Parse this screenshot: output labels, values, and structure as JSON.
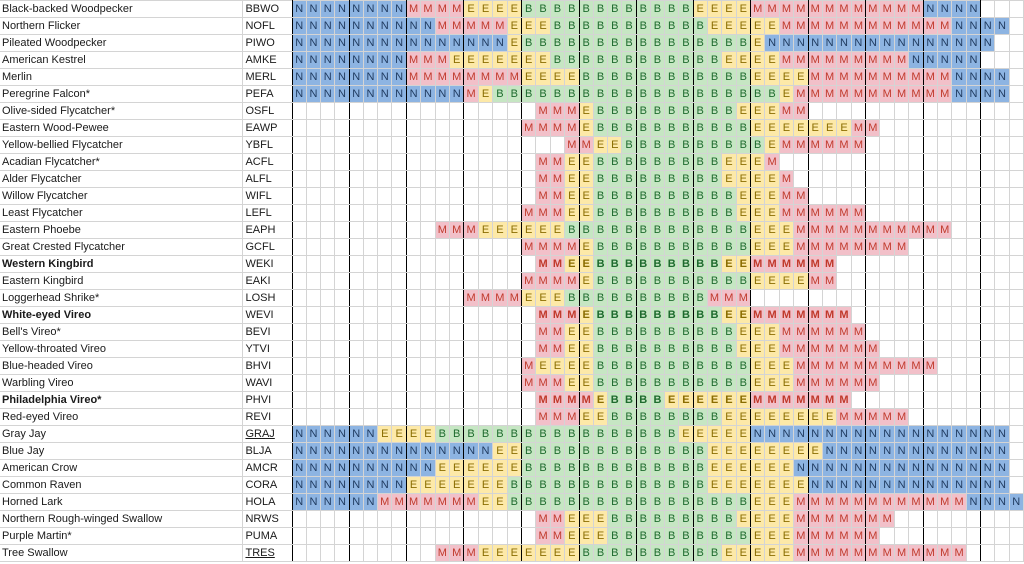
{
  "species": [
    {
      "name": "Black-backed Woodpecker",
      "code": "BBWO",
      "bold": false,
      "uline": false,
      "cells": "NNNNNNNNMMMMEEEEBBBBBBBBBBBBEEEEMMMMMMMMMMMMNNNN"
    },
    {
      "name": "Northern Flicker",
      "code": "NOFL",
      "bold": false,
      "uline": false,
      "cells": "NNNNNNNNNNMMMMMEEEBBBBBBBBBBBEEEEEMMMMMMMMMMMMNNNN"
    },
    {
      "name": "Pileated Woodpecker",
      "code": "PIWO",
      "bold": false,
      "uline": false,
      "cells": "NNNNNNNNNNNNNNNEBBBBBBBBBBBBBBBBENNNNNNNNNNNNNNNN"
    },
    {
      "name": "American Kestrel",
      "code": "AMKE",
      "bold": false,
      "uline": false,
      "cells": "NNNNNNNNMMMEEEEEEEBBBBBBBBBBBBEEEEMMMMMMMMMNNNNN"
    },
    {
      "name": "Merlin",
      "code": "MERL",
      "bold": false,
      "uline": false,
      "cells": "NNNNNNNNMMMMMMMMEEEEBBBBBBBBBBBBEEEEMMMMMMMMMMNNNN"
    },
    {
      "name": "Peregrine Falcon*",
      "code": "PEFA",
      "bold": false,
      "uline": false,
      "cells": "NNNNNNNNNNNNMEBBBBBBBBBBBBBBBBBBBBEMMMMMMMMMMMNNNN"
    },
    {
      "name": "Olive-sided Flycatcher*",
      "code": "OSFL",
      "bold": false,
      "uline": false,
      "cells": "                 MMMEBBBBBBBBBBEEEMM        "
    },
    {
      "name": "Eastern Wood-Pewee",
      "code": "EAWP",
      "bold": false,
      "uline": false,
      "cells": "                MMMMEBBBBBBBBBBBEEEEEEEMM       "
    },
    {
      "name": "Yellow-bellied Flycatcher",
      "code": "YBFL",
      "bold": false,
      "uline": false,
      "cells": "                   MMEEBBBBBBBBBBEMMMMMM         "
    },
    {
      "name": "Acadian Flycatcher*",
      "code": "ACFL",
      "bold": false,
      "uline": false,
      "cells": "                 MMEEBBBBBBBBBEEEM          "
    },
    {
      "name": "Alder Flycatcher",
      "code": "ALFL",
      "bold": false,
      "uline": false,
      "cells": "                 MMEEBBBBBBBBBEEEEM          "
    },
    {
      "name": "Willow Flycatcher",
      "code": "WIFL",
      "bold": false,
      "uline": false,
      "cells": "                 MMEEBBBBBBBBBBEEEMM         "
    },
    {
      "name": "Least Flycatcher",
      "code": "LEFL",
      "bold": false,
      "uline": false,
      "cells": "                MMMEEBBBBBBBBBBEEEMMMMMM        "
    },
    {
      "name": "Eastern Phoebe",
      "code": "EAPH",
      "bold": false,
      "uline": false,
      "cells": "          MMMEEEEEEBBBBBBBBBBBBBEEEMMMMMMMMMMM   "
    },
    {
      "name": "Great Crested Flycatcher",
      "code": "GCFL",
      "bold": false,
      "uline": false,
      "cells": "                MMMMEBBBBBBBBBBBEEEMMMMMMMM       "
    },
    {
      "name": "Western Kingbird",
      "code": "WEKI",
      "bold": true,
      "uline": false,
      "cells": "                 MMEEBBBBBBBBBEEMMMMMM        "
    },
    {
      "name": "Eastern Kingbird",
      "code": "EAKI",
      "bold": false,
      "uline": false,
      "cells": "                MMMMEBBBBBBBBBBBEEEEMM        "
    },
    {
      "name": "Loggerhead Shrike*",
      "code": "LOSH",
      "bold": false,
      "uline": false,
      "cells": "            MMMMEEEBBBBBBBBBBMMM            "
    },
    {
      "name": "White-eyed Vireo",
      "code": "WEVI",
      "bold": true,
      "uline": false,
      "cells": "                 MMMEBBBBBBBBBEEMMMMMMM       "
    },
    {
      "name": "Bell's Vireo*",
      "code": "BEVI",
      "bold": false,
      "uline": false,
      "cells": "                 MMEEBBBBBBBBBBEEEMMMMMM       "
    },
    {
      "name": "Yellow-throated Vireo",
      "code": "YTVI",
      "bold": false,
      "uline": false,
      "cells": "                 MMEEBBBBBBBBBBEEEMMMMMMM      "
    },
    {
      "name": "Blue-headed Vireo",
      "code": "BHVI",
      "bold": false,
      "uline": false,
      "cells": "                MEEEEBBBBBBBBBBBEEEMMMMMMMMMM    "
    },
    {
      "name": "Warbling Vireo",
      "code": "WAVI",
      "bold": false,
      "uline": false,
      "cells": "                MMMEEBBBBBBBBBBBEEEMMMMMM       "
    },
    {
      "name": "Philadelphia Vireo*",
      "code": "PHVI",
      "bold": true,
      "uline": false,
      "cells": "                 MMMMEBBBBEEEEEEMMMMMMM       "
    },
    {
      "name": "Red-eyed Vireo",
      "code": "REVI",
      "bold": false,
      "uline": false,
      "cells": "                 MMMEEBBBBBBBBEEEEEEEEMMMMM      "
    },
    {
      "name": "Gray Jay",
      "code": "GRAJ",
      "bold": false,
      "uline": true,
      "cells": "NNNNNNEEEEBBBBBBBBBBBBBBBBBEEEEENNNNNNNNNNNNNNNNNN"
    },
    {
      "name": "Blue Jay",
      "code": "BLJA",
      "bold": false,
      "uline": false,
      "cells": "NNNNNNNNNNNNNNEEBBBBBBBBBBBBBEEEEEEEENNNNNNNNNNNNN"
    },
    {
      "name": "American Crow",
      "code": "AMCR",
      "bold": false,
      "uline": false,
      "cells": "NNNNNNNNNNEEEEEEBBBBBBBBBBBBBEEEEEENNNNNNNNNNNNNNN"
    },
    {
      "name": "Common Raven",
      "code": "CORA",
      "bold": false,
      "uline": false,
      "cells": "NNNNNNNNEEEEEEEBBBBBBBBBBBBBBEEEEEEENNNNNNNNNNNNNN"
    },
    {
      "name": "Horned Lark",
      "code": "HOLA",
      "bold": false,
      "uline": false,
      "cells": "NNNNNNMMMMMMMEEBBBBBBBBBBBBBBBBBEEEMMMMMMMMMMMMNNNN"
    },
    {
      "name": "Northern Rough-winged Swallow",
      "code": "NRWS",
      "bold": false,
      "uline": false,
      "cells": "                 MMEEEBBBBBBBBBEEEEMMMMMMM       "
    },
    {
      "name": "Purple Martin*",
      "code": "PUMA",
      "bold": false,
      "uline": false,
      "cells": "                 MMEEEBBBBBBBBBBEEEMMMMMM        "
    },
    {
      "name": "Tree Swallow",
      "code": "TRES",
      "bold": false,
      "uline": true,
      "cells": "          MMMEEEEEEEBBBBBBBBBBEEEEEMMMMMMMMMMMM    "
    }
  ]
}
